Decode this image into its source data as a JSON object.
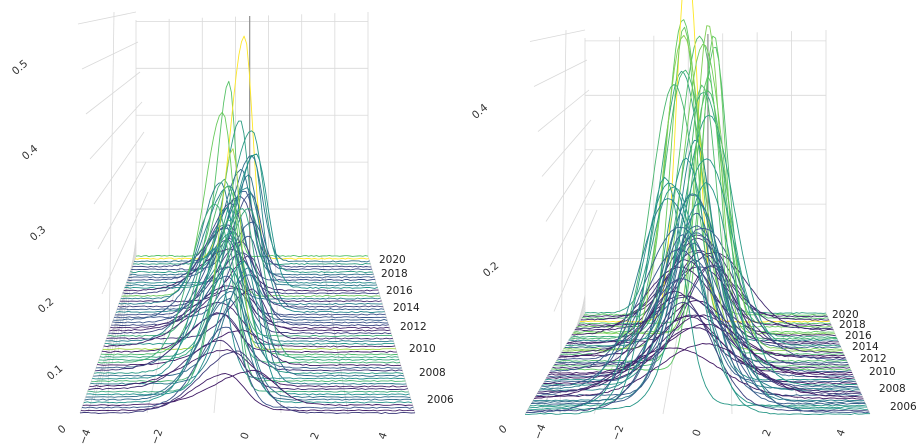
{
  "chart_data": [
    {
      "type": "line",
      "subtype": "3d-ridgeline",
      "series_count": 60,
      "z_tick_labels": [
        "0",
        "0.1",
        "0.2",
        "0.3",
        "0.4",
        "0.5"
      ],
      "x_tick_labels": [
        "−4",
        "−2",
        "0",
        "2",
        "4"
      ],
      "year_labels": [
        "2020",
        "2018",
        "2016",
        "2014",
        "2012",
        "2010",
        "2008",
        "2006"
      ],
      "colormap": [
        "#440154",
        "#3b528b",
        "#21918c",
        "#5ec962",
        "#fde725"
      ]
    },
    {
      "type": "line",
      "subtype": "3d-ridgeline",
      "series_count": 60,
      "z_tick_labels": [
        "0",
        "0.2",
        "0.4"
      ],
      "x_tick_labels": [
        "−4",
        "−2",
        "0",
        "2",
        "4"
      ],
      "year_labels": [
        "2020",
        "2018",
        "2016",
        "2014",
        "2012",
        "2010",
        "2008",
        "2006"
      ],
      "colormap": [
        "#440154",
        "#3b528b",
        "#21918c",
        "#5ec962",
        "#fde725"
      ]
    }
  ]
}
